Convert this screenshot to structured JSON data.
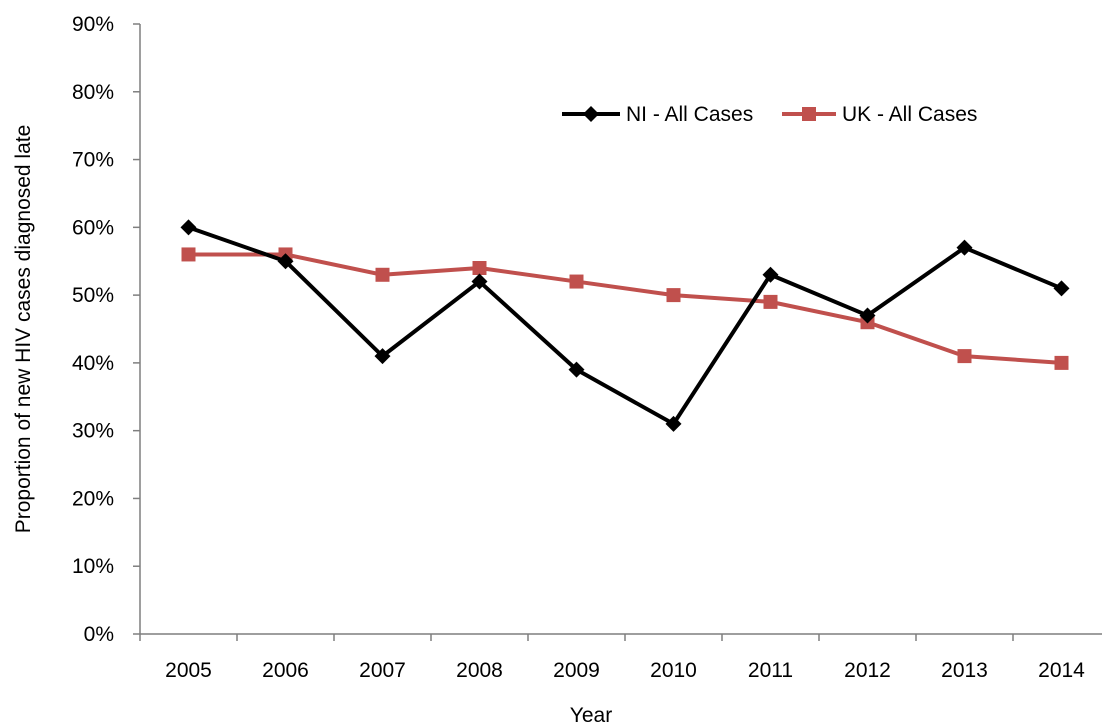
{
  "chart_data": {
    "type": "line",
    "title": "",
    "xlabel": "Year",
    "ylabel": "Proportion of new HIV cases diagnosed late",
    "categories": [
      "2005",
      "2006",
      "2007",
      "2008",
      "2009",
      "2010",
      "2011",
      "2012",
      "2013",
      "2014"
    ],
    "ylim": [
      0,
      90
    ],
    "y_ticks": [
      0,
      10,
      20,
      30,
      40,
      50,
      60,
      70,
      80,
      90
    ],
    "y_tick_format": "{v}%",
    "grid": false,
    "legend_position": "top-right",
    "series": [
      {
        "name": "NI - All Cases",
        "color": "#000000",
        "marker": "diamond",
        "values": [
          60,
          55,
          41,
          52,
          39,
          31,
          53,
          47,
          57,
          51
        ]
      },
      {
        "name": "UK - All Cases",
        "color": "#c0504d",
        "marker": "square",
        "values": [
          56,
          56,
          53,
          54,
          52,
          50,
          49,
          46,
          41,
          40
        ]
      }
    ]
  }
}
